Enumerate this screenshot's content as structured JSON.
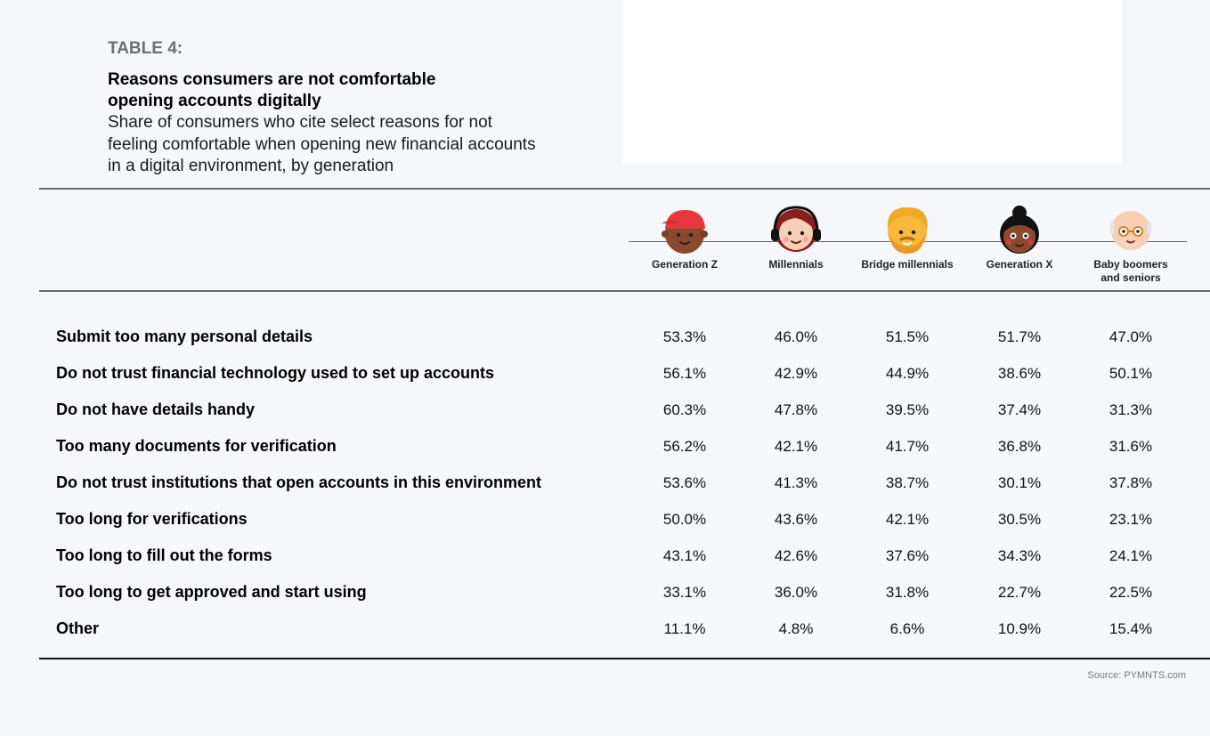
{
  "table_label": "TABLE 4:",
  "title": "Reasons consumers are not comfortable opening accounts digitally",
  "subtitle": "Share of consumers who cite select reasons for not feeling comfortable when opening new financial accounts in a digital environment, by generation",
  "source": "Source: PYMNTS.com",
  "colors": {
    "background": "#f6f7fb",
    "rule": "#6a6a6a",
    "cap_red": "#e8383f",
    "hair_blonde": "#f6b93b"
  },
  "chart_data": {
    "type": "table",
    "columns": [
      {
        "label": "Generation Z",
        "icon": "gen-z-avatar-icon"
      },
      {
        "label": "Millennials",
        "icon": "millennial-avatar-icon"
      },
      {
        "label": "Bridge millennials",
        "icon": "bridge-millennial-avatar-icon"
      },
      {
        "label": "Generation X",
        "icon": "gen-x-avatar-icon"
      },
      {
        "label": "Baby boomers and seniors",
        "icon": "boomer-avatar-icon"
      }
    ],
    "rows": [
      {
        "label": "Submit too many personal details",
        "values": [
          "53.3%",
          "46.0%",
          "51.5%",
          "51.7%",
          "47.0%"
        ]
      },
      {
        "label": "Do not trust financial technology used to set up accounts",
        "values": [
          "56.1%",
          "42.9%",
          "44.9%",
          "38.6%",
          "50.1%"
        ]
      },
      {
        "label": "Do not have details handy",
        "values": [
          "60.3%",
          "47.8%",
          "39.5%",
          "37.4%",
          "31.3%"
        ]
      },
      {
        "label": "Too many documents for verification",
        "values": [
          "56.2%",
          "42.1%",
          "41.7%",
          "36.8%",
          "31.6%"
        ]
      },
      {
        "label": "Do not trust institutions that open accounts in this environment",
        "values": [
          "53.6%",
          "41.3%",
          "38.7%",
          "30.1%",
          "37.8%"
        ]
      },
      {
        "label": "Too long for verifications",
        "values": [
          "50.0%",
          "43.6%",
          "42.1%",
          "30.5%",
          "23.1%"
        ]
      },
      {
        "label": "Too long to fill out the forms",
        "values": [
          "43.1%",
          "42.6%",
          "37.6%",
          "34.3%",
          "24.1%"
        ]
      },
      {
        "label": "Too long to get approved and start using",
        "values": [
          "33.1%",
          "36.0%",
          "31.8%",
          "22.7%",
          "22.5%"
        ]
      },
      {
        "label": "Other",
        "values": [
          "11.1%",
          "4.8%",
          "6.6%",
          "10.9%",
          "15.4%"
        ]
      }
    ]
  }
}
